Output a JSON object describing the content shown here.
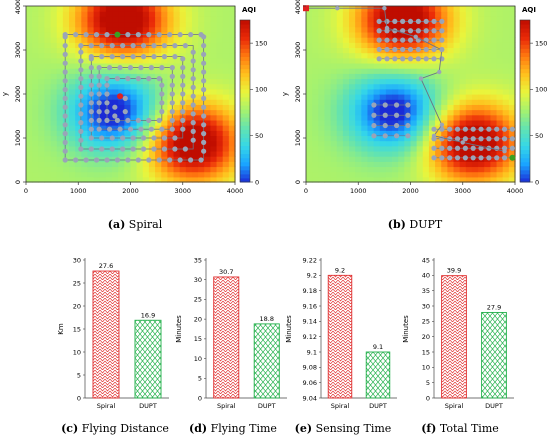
{
  "colors": {
    "heatmap_stops": [
      "#1b2bd6",
      "#1aa3ff",
      "#35d7e8",
      "#63e3b0",
      "#a6f26e",
      "#e9f53c",
      "#ffc11d",
      "#ff7a10",
      "#ea2a08",
      "#bf0d00"
    ],
    "path_nodes": "#9aa4b8",
    "path_line": "#6b7485",
    "spiral_bar": "#e03030",
    "dupt_bar": "#22b04a",
    "red_marker": "#e02020",
    "green_marker": "#3aa020"
  },
  "chart_data": [
    {
      "type": "heatmap",
      "caption_letter": "(a)",
      "caption_text": "Spiral",
      "xlabel": "x",
      "ylabel": "y",
      "xlim": [
        0,
        4000
      ],
      "ylim": [
        0,
        4000
      ],
      "xticks": [
        0,
        1000,
        2000,
        3000,
        4000
      ],
      "yticks": [
        0,
        1000,
        2000,
        3000,
        4000
      ],
      "colorbar": {
        "label": "AQI",
        "range": [
          0,
          175
        ],
        "ticks": [
          0,
          50,
          100,
          150
        ]
      },
      "field_sources": [
        {
          "x": 1850,
          "y": 3700,
          "amp": 115,
          "sigma": 620
        },
        {
          "x": 3200,
          "y": 900,
          "amp": 115,
          "sigma": 620
        },
        {
          "x": 1700,
          "y": 1600,
          "amp": -90,
          "sigma": 620
        }
      ],
      "field_base": 80,
      "path_rects": [
        [
          750,
          500,
          3400,
          3350
        ],
        [
          1050,
          750,
          3200,
          3100
        ],
        [
          1250,
          1000,
          3000,
          2850
        ],
        [
          1400,
          1200,
          2800,
          2600
        ],
        [
          1550,
          1400,
          2600,
          2350
        ]
      ],
      "extra_points": [
        [
          1700,
          1700
        ],
        [
          1900,
          1900
        ],
        [
          1700,
          1500
        ],
        [
          1900,
          1600
        ]
      ],
      "start": [
        1750,
        3350
      ],
      "end": [
        1800,
        1950
      ]
    },
    {
      "type": "heatmap",
      "caption_letter": "(b)",
      "caption_text": "DUPT",
      "xlabel": "x",
      "ylabel": "y",
      "xlim": [
        0,
        4000
      ],
      "ylim": [
        0,
        4000
      ],
      "xticks": [
        0,
        1000,
        2000,
        3000,
        4000
      ],
      "yticks": [
        0,
        1000,
        2000,
        3000,
        4000
      ],
      "colorbar": {
        "label": "AQI",
        "range": [
          0,
          175
        ],
        "ticks": [
          0,
          50,
          100,
          150
        ]
      },
      "field_sources": [
        {
          "x": 1850,
          "y": 3700,
          "amp": 115,
          "sigma": 620
        },
        {
          "x": 3200,
          "y": 900,
          "amp": 115,
          "sigma": 620
        },
        {
          "x": 1700,
          "y": 1600,
          "amp": -90,
          "sigma": 620
        }
      ],
      "field_base": 80,
      "clusters": [
        {
          "x0": 1400,
          "x1": 2600,
          "y0": 2800,
          "y1": 3650,
          "cols": 9,
          "rows": 5
        },
        {
          "x0": 2450,
          "x1": 3950,
          "y0": 550,
          "y1": 1200,
          "cols": 11,
          "rows": 4
        },
        {
          "x0": 1300,
          "x1": 1950,
          "y0": 1050,
          "y1": 1750,
          "cols": 4,
          "rows": 4
        }
      ],
      "route": [
        [
          0,
          3950
        ],
        [
          600,
          3950
        ],
        [
          1500,
          3950
        ],
        [
          1550,
          3500
        ],
        [
          2100,
          3300
        ],
        [
          2600,
          3000
        ],
        [
          2550,
          2500
        ],
        [
          2200,
          2350
        ],
        [
          2600,
          1300
        ],
        [
          2450,
          1050
        ],
        [
          3000,
          900
        ],
        [
          3800,
          700
        ]
      ],
      "start": [
        0,
        3950
      ],
      "end": [
        3950,
        550
      ]
    },
    {
      "type": "bar",
      "caption_letter": "(c)",
      "caption_text": "Flying Distance",
      "ylabel": "Km",
      "categories": [
        "Spiral",
        "DUPT"
      ],
      "values": [
        27.6,
        16.9
      ],
      "value_labels": [
        "27.6",
        "16.9"
      ],
      "ylim": [
        0,
        30
      ],
      "yticks": [
        0,
        5,
        10,
        15,
        20,
        25,
        30
      ],
      "ytick_labels": [
        "0",
        "5",
        "10",
        "15",
        "20",
        "25",
        "30"
      ]
    },
    {
      "type": "bar",
      "caption_letter": "(d)",
      "caption_text": "Flying Time",
      "ylabel": "Minutes",
      "categories": [
        "Spiral",
        "DUPT"
      ],
      "values": [
        30.7,
        18.8
      ],
      "value_labels": [
        "30.7",
        "18.8"
      ],
      "ylim": [
        0,
        35
      ],
      "yticks": [
        0,
        5,
        10,
        15,
        20,
        25,
        30,
        35
      ],
      "ytick_labels": [
        "0",
        "5",
        "10",
        "15",
        "20",
        "25",
        "30",
        "35"
      ]
    },
    {
      "type": "bar",
      "caption_letter": "(e)",
      "caption_text": "Sensing Time",
      "ylabel": "Minutes",
      "categories": [
        "Spiral",
        "DUPT"
      ],
      "values": [
        9.2,
        9.1
      ],
      "value_labels": [
        "9.2",
        "9.1"
      ],
      "ylim": [
        9.04,
        9.22
      ],
      "yticks": [
        9.04,
        9.06,
        9.08,
        9.1,
        9.12,
        9.14,
        9.16,
        9.18,
        9.2,
        9.22
      ],
      "ytick_labels": [
        "9.04",
        "9.06",
        "9.08",
        "9.1",
        "9.12",
        "9.14",
        "9.16",
        "9.18",
        "9.2",
        "9.22"
      ]
    },
    {
      "type": "bar",
      "caption_letter": "(f)",
      "caption_text": "Total Time",
      "ylabel": "Minutes",
      "categories": [
        "Spiral",
        "DUPT"
      ],
      "values": [
        39.9,
        27.9
      ],
      "value_labels": [
        "39.9",
        "27.9"
      ],
      "ylim": [
        0,
        45
      ],
      "yticks": [
        0,
        5,
        10,
        15,
        20,
        25,
        30,
        35,
        40,
        45
      ],
      "ytick_labels": [
        "0",
        "5",
        "10",
        "15",
        "20",
        "25",
        "30",
        "35",
        "40",
        "45"
      ]
    }
  ]
}
